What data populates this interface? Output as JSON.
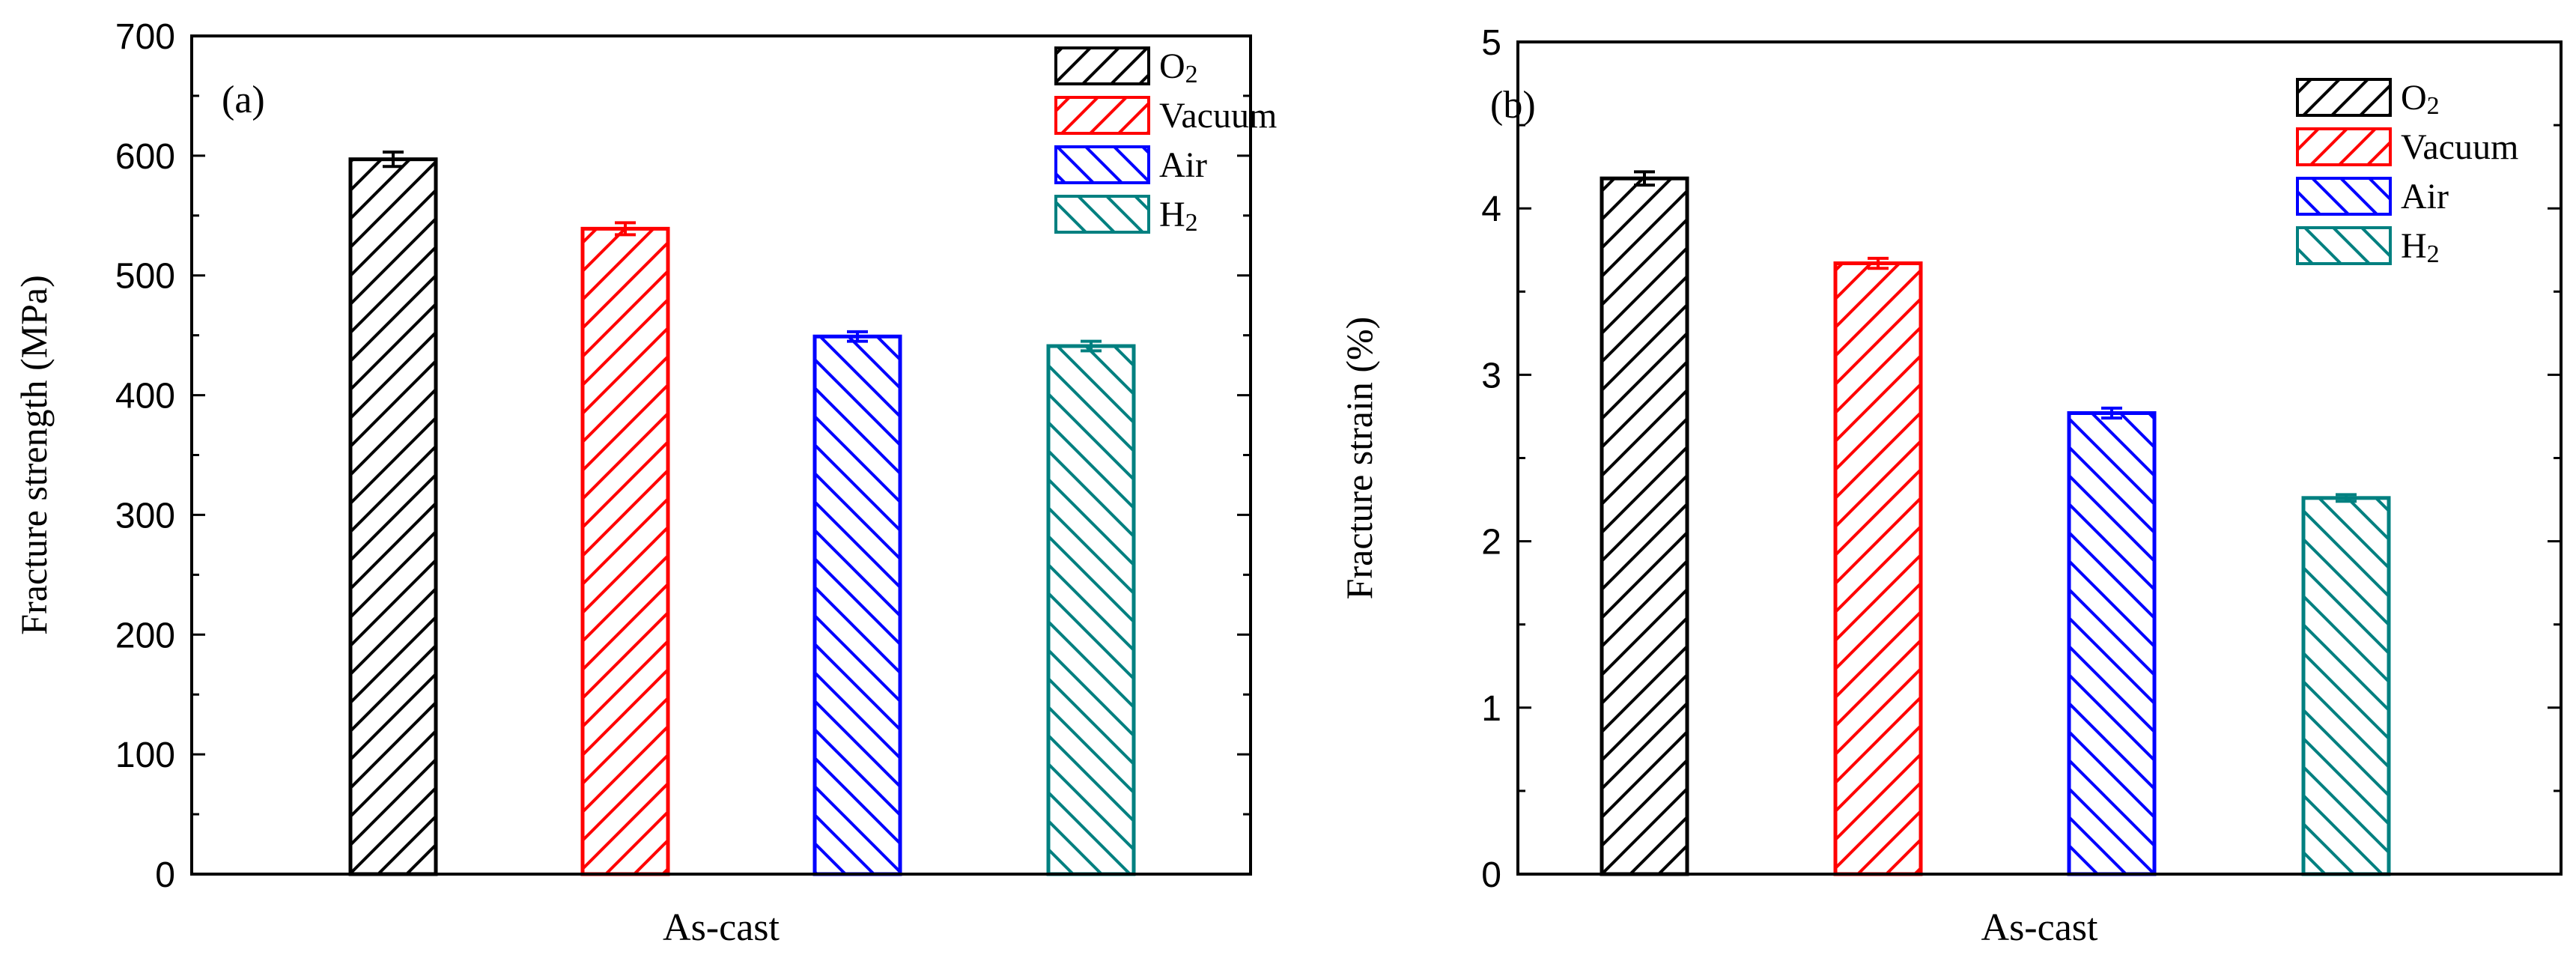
{
  "chart_data": [
    {
      "type": "bar",
      "panel_label": "(a)",
      "title": "",
      "xlabel": "As-cast",
      "ylabel": "Fracture strength (MPa)",
      "ylim": [
        0,
        700
      ],
      "yticks": [
        "0",
        "100",
        "200",
        "300",
        "400",
        "500",
        "600",
        "700"
      ],
      "legend_position": "top-right",
      "series": [
        {
          "name": "O",
          "sub": "2",
          "value": 597,
          "error": 6,
          "color": "#000000",
          "hatch": "forward"
        },
        {
          "name": "Vacuum",
          "sub": "",
          "value": 539,
          "error": 5,
          "color": "#ff0000",
          "hatch": "forward"
        },
        {
          "name": "Air",
          "sub": "",
          "value": 449,
          "error": 4,
          "color": "#0000ff",
          "hatch": "back"
        },
        {
          "name": "H",
          "sub": "2",
          "value": 441,
          "error": 4,
          "color": "#008080",
          "hatch": "back"
        }
      ]
    },
    {
      "type": "bar",
      "panel_label": "(b)",
      "title": "",
      "xlabel": "As-cast",
      "ylabel": "Fracture strain (%)",
      "ylim": [
        0,
        5
      ],
      "yticks": [
        "0",
        "1",
        "2",
        "3",
        "4",
        "5"
      ],
      "legend_position": "top-right",
      "series": [
        {
          "name": "O",
          "sub": "2",
          "value": 4.18,
          "error": 0.04,
          "color": "#000000",
          "hatch": "forward"
        },
        {
          "name": "Vacuum",
          "sub": "",
          "value": 3.67,
          "error": 0.03,
          "color": "#ff0000",
          "hatch": "forward"
        },
        {
          "name": "Air",
          "sub": "",
          "value": 2.77,
          "error": 0.03,
          "color": "#0000ff",
          "hatch": "back"
        },
        {
          "name": "H",
          "sub": "2",
          "value": 2.26,
          "error": 0.02,
          "color": "#008080",
          "hatch": "back"
        }
      ]
    }
  ]
}
